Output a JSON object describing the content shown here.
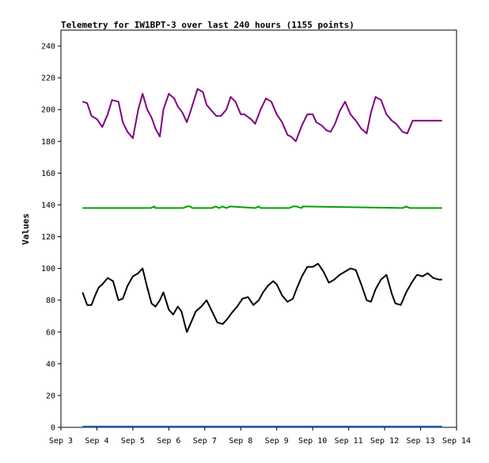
{
  "chart_data": {
    "type": "line",
    "title": "Telemetry for IW1BPT-3 over last 240 hours (1155 points)",
    "xlabel": "",
    "ylabel": "Values",
    "xlim": [
      "Sep 3",
      "Sep 14"
    ],
    "ylim": [
      0,
      250
    ],
    "x_ticks": [
      "Sep 3",
      "Sep 4",
      "Sep 5",
      "Sep 6",
      "Sep 7",
      "Sep 8",
      "Sep 9",
      "Sep 10",
      "Sep 11",
      "Sep 12",
      "Sep 13",
      "Sep 14"
    ],
    "y_ticks": [
      "0",
      "20",
      "40",
      "60",
      "80",
      "100",
      "120",
      "140",
      "160",
      "180",
      "200",
      "220",
      "240"
    ],
    "grid": false,
    "legend": "none",
    "series": [
      {
        "color": "#800080",
        "x": [
          3.6,
          3.73,
          3.85,
          4.0,
          4.15,
          4.3,
          4.42,
          4.6,
          4.72,
          4.85,
          5.0,
          5.15,
          5.27,
          5.4,
          5.52,
          5.63,
          5.75,
          5.85,
          6.0,
          6.15,
          6.25,
          6.38,
          6.5,
          6.62,
          6.8,
          6.95,
          7.05,
          7.2,
          7.32,
          7.45,
          7.6,
          7.72,
          7.85,
          8.0,
          8.1,
          8.28,
          8.4,
          8.55,
          8.7,
          8.85,
          9.0,
          9.15,
          9.3,
          9.4,
          9.53,
          9.7,
          9.85,
          10.0,
          10.1,
          10.25,
          10.38,
          10.5,
          10.62,
          10.75,
          10.9,
          11.05,
          11.2,
          11.35,
          11.5,
          11.62,
          11.75,
          11.9,
          12.05,
          12.2,
          12.32,
          12.5,
          12.63,
          12.78,
          12.9,
          13.05,
          13.2,
          13.35,
          13.48,
          13.6
        ],
        "y": [
          205,
          204,
          196,
          194,
          189,
          197,
          206,
          205,
          192,
          186,
          182,
          200,
          210,
          200,
          195,
          188,
          183,
          200,
          210,
          207,
          202,
          198,
          192,
          200,
          213,
          211,
          203,
          199,
          196,
          196,
          200,
          208,
          205,
          197,
          197,
          194,
          191,
          200,
          207,
          205,
          197,
          192,
          184,
          183,
          180,
          190,
          197,
          197,
          192,
          190,
          187,
          186,
          191,
          199,
          205,
          197,
          193,
          188,
          185,
          198,
          208,
          206,
          197,
          193,
          191,
          186,
          185,
          193,
          193,
          193,
          193,
          193,
          193,
          193
        ]
      },
      {
        "color": "#00a000",
        "x": [
          3.6,
          5.5,
          5.6,
          5.62,
          5.7,
          6.4,
          6.5,
          6.6,
          6.65,
          7.2,
          7.3,
          7.4,
          7.5,
          7.6,
          7.7,
          8.4,
          8.5,
          8.55,
          9.35,
          9.45,
          9.55,
          9.7,
          9.72,
          12.5,
          12.6,
          12.7,
          13.6
        ],
        "y": [
          138,
          138,
          139,
          138,
          138,
          138,
          139,
          139,
          138,
          138,
          139,
          138,
          139,
          138,
          139,
          138,
          139,
          138,
          138,
          139,
          139,
          138,
          139,
          138,
          139,
          138,
          138
        ]
      },
      {
        "color": "#000000",
        "x": [
          3.6,
          3.73,
          3.85,
          3.95,
          4.05,
          4.15,
          4.3,
          4.45,
          4.6,
          4.72,
          4.85,
          5.0,
          5.15,
          5.27,
          5.4,
          5.52,
          5.63,
          5.75,
          5.85,
          6.0,
          6.12,
          6.25,
          6.35,
          6.5,
          6.6,
          6.75,
          6.9,
          7.05,
          7.2,
          7.35,
          7.5,
          7.62,
          7.75,
          7.9,
          8.05,
          8.2,
          8.35,
          8.5,
          8.62,
          8.75,
          8.9,
          9.0,
          9.15,
          9.3,
          9.45,
          9.55,
          9.7,
          9.85,
          10.0,
          10.15,
          10.3,
          10.45,
          10.6,
          10.75,
          10.9,
          11.05,
          11.2,
          11.35,
          11.5,
          11.62,
          11.75,
          11.9,
          12.05,
          12.2,
          12.3,
          12.45,
          12.6,
          12.75,
          12.9,
          13.05,
          13.2,
          13.35,
          13.5,
          13.6
        ],
        "y": [
          85,
          77,
          77,
          83,
          88,
          90,
          94,
          92,
          80,
          81,
          89,
          95,
          97,
          100,
          88,
          78,
          76,
          80,
          85,
          74,
          71,
          76,
          73,
          60,
          65,
          73,
          76,
          80,
          73,
          66,
          65,
          68,
          72,
          76,
          81,
          82,
          77,
          80,
          85,
          89,
          92,
          90,
          83,
          79,
          81,
          87,
          95,
          101,
          101,
          103,
          98,
          91,
          93,
          96,
          98,
          100,
          99,
          90,
          80,
          79,
          87,
          93,
          96,
          84,
          78,
          77,
          85,
          91,
          96,
          95,
          97,
          94,
          93,
          93
        ]
      },
      {
        "color": "#0060c0",
        "x": [
          3.6,
          13.6
        ],
        "y": [
          0.5,
          0.5
        ]
      }
    ]
  }
}
